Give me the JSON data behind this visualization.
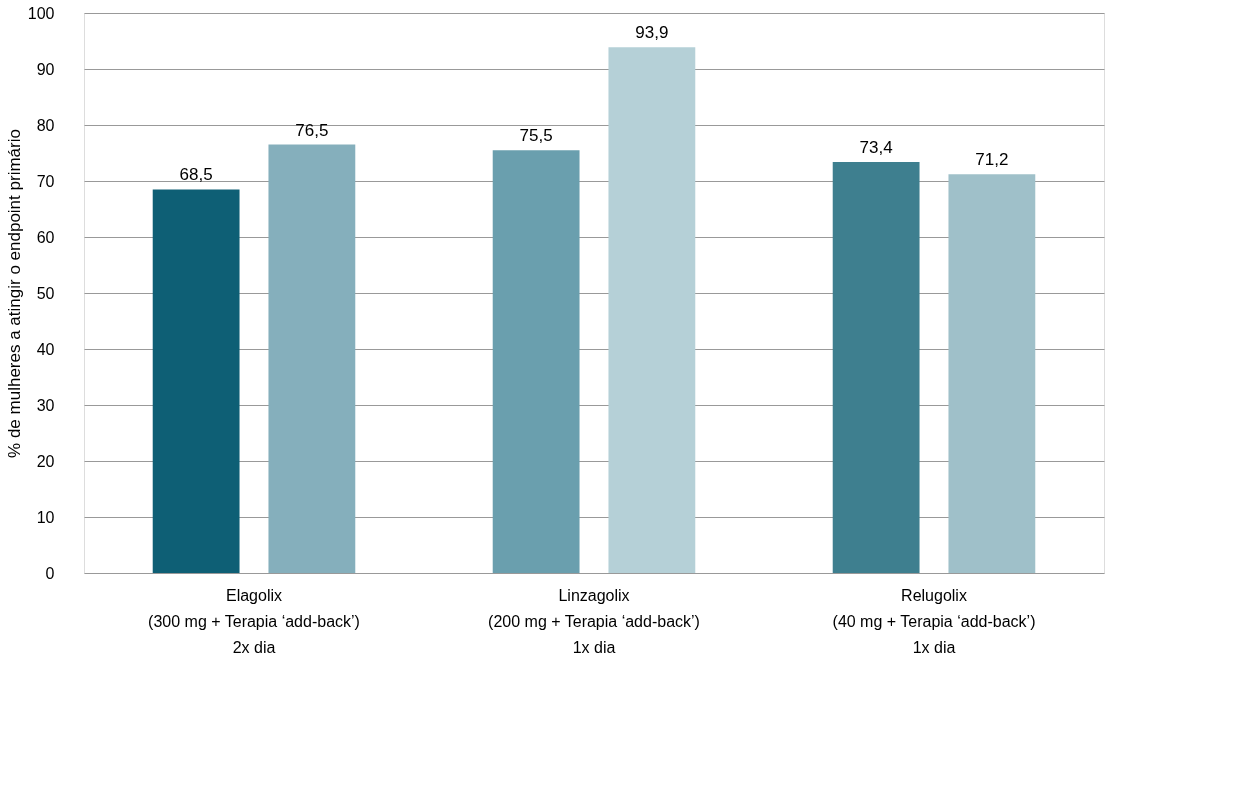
{
  "chart_data": {
    "type": "bar",
    "categories": [
      "Elagolix\n(300 mg + Terapia ‘add-back’)\n2x dia",
      "Linzagolix\n(200 mg + Terapia ‘add-back’)\n1x dia",
      "Relugolix\n(40 mg + Terapia ‘add-back’)\n1x dia"
    ],
    "ylabel": "% de mulheres a atingir o endpoint primário",
    "series": [
      {
        "colors": [
          "#0e5f75",
          "#6a9fae",
          "#3e7f8f"
        ],
        "values": [
          68.5,
          75.5,
          73.4
        ],
        "value_labels": [
          "68,5",
          "75,5",
          "73,4"
        ]
      },
      {
        "colors": [
          "#85afbc",
          "#b5d0d7",
          "#9fc0c9"
        ],
        "values": [
          76.5,
          93.9,
          71.2
        ],
        "value_labels": [
          "76,5",
          "93,9",
          "71,2"
        ]
      }
    ],
    "ylim": [
      0,
      100
    ],
    "yticks": [
      0,
      10,
      20,
      30,
      40,
      50,
      60,
      70,
      80,
      90,
      100
    ],
    "grid": "y"
  }
}
